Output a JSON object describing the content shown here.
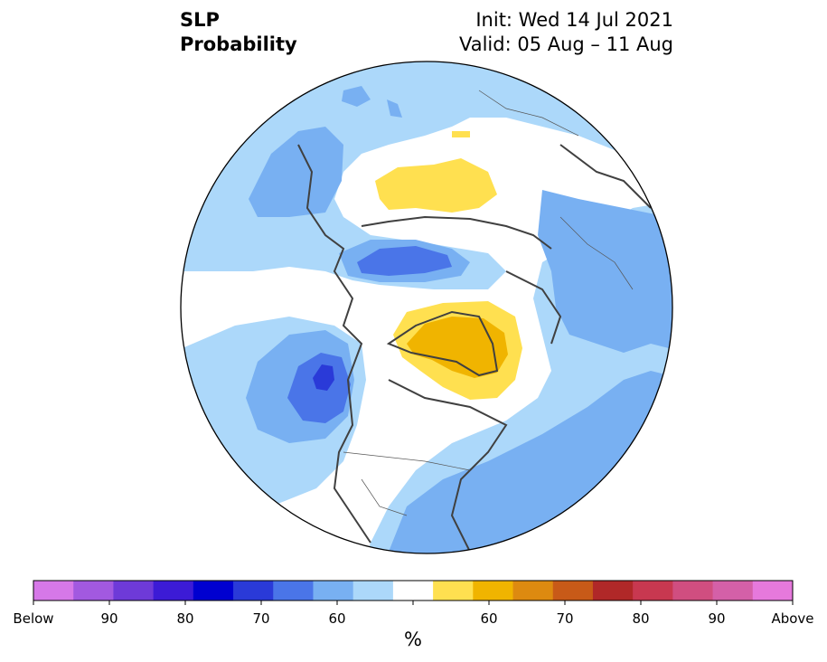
{
  "header": {
    "variable": "SLP",
    "product": "Probability",
    "init": "Init: Wed 14 Jul 2021",
    "valid": "Valid: 05 Aug – 11 Aug"
  },
  "colorbar": {
    "unit": "%",
    "labels": [
      "Below",
      "90",
      "80",
      "70",
      "60",
      "60",
      "70",
      "80",
      "90",
      "Above"
    ],
    "colors": [
      "#d678e8",
      "#a259e0",
      "#6e3ad8",
      "#3c1bd6",
      "#0000d0",
      "#2a3ad8",
      "#4a75e8",
      "#78b0f2",
      "#acd8fa",
      "#ffffff",
      "#ffe050",
      "#f0b400",
      "#dd8a10",
      "#c85a18",
      "#b02828",
      "#c83850",
      "#d04e80",
      "#d460a8",
      "#e679dc"
    ]
  },
  "legend_colors": {
    "below_light": "#acd8fa",
    "below_mid": "#78b0f2",
    "below_strong": "#4a75e8",
    "below_stronger": "#2a3ad8",
    "above_light": "#ffe050",
    "above_mid": "#f0b400",
    "coast": "#404040"
  }
}
